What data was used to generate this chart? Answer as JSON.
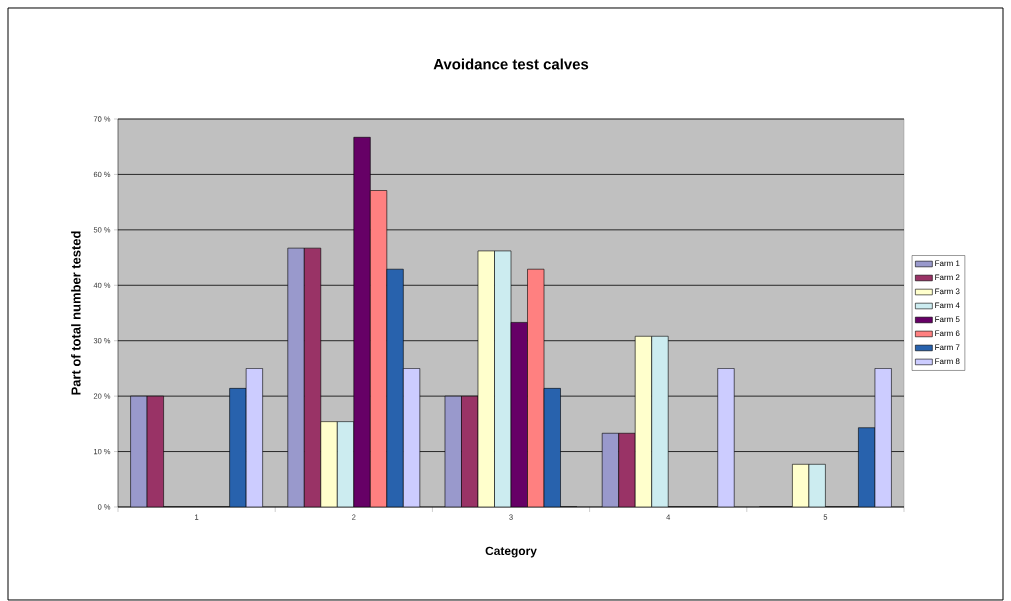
{
  "chart_data": {
    "type": "bar",
    "title": "Avoidance test calves",
    "xlabel": "Category",
    "ylabel": "Part of total number tested",
    "categories": [
      "1",
      "2",
      "3",
      "4",
      "5"
    ],
    "series": [
      {
        "name": "Farm 1",
        "color": "#9999cc",
        "values": [
          20,
          46.7,
          20,
          13.3,
          0
        ]
      },
      {
        "name": "Farm 2",
        "color": "#993366",
        "values": [
          20,
          46.7,
          20,
          13.3,
          0
        ]
      },
      {
        "name": "Farm 3",
        "color": "#ffffcc",
        "values": [
          0,
          15.4,
          46.2,
          30.8,
          7.7
        ]
      },
      {
        "name": "Farm 4",
        "color": "#ccecf0",
        "values": [
          0,
          15.4,
          46.2,
          30.8,
          7.7
        ]
      },
      {
        "name": "Farm 5",
        "color": "#660066",
        "values": [
          0,
          66.7,
          33.3,
          0,
          0
        ]
      },
      {
        "name": "Farm 6",
        "color": "#ff8080",
        "values": [
          0,
          57.1,
          42.9,
          0,
          0
        ]
      },
      {
        "name": "Farm 7",
        "color": "#2862ad",
        "values": [
          21.4,
          42.9,
          21.4,
          0,
          14.3
        ]
      },
      {
        "name": "Farm 8",
        "color": "#ccccff",
        "values": [
          25,
          25,
          0,
          25,
          25
        ]
      }
    ],
    "ylim": [
      0,
      70
    ],
    "yticks": [
      {
        "value": 0,
        "label": "0 %"
      },
      {
        "value": 10,
        "label": "10 %"
      },
      {
        "value": 20,
        "label": "20 %"
      },
      {
        "value": 30,
        "label": "30 %"
      },
      {
        "value": 40,
        "label": "40 %"
      },
      {
        "value": 50,
        "label": "50 %"
      },
      {
        "value": 60,
        "label": "60 %"
      },
      {
        "value": 70,
        "label": "70 %"
      }
    ],
    "grid": "y",
    "legend": "right"
  }
}
